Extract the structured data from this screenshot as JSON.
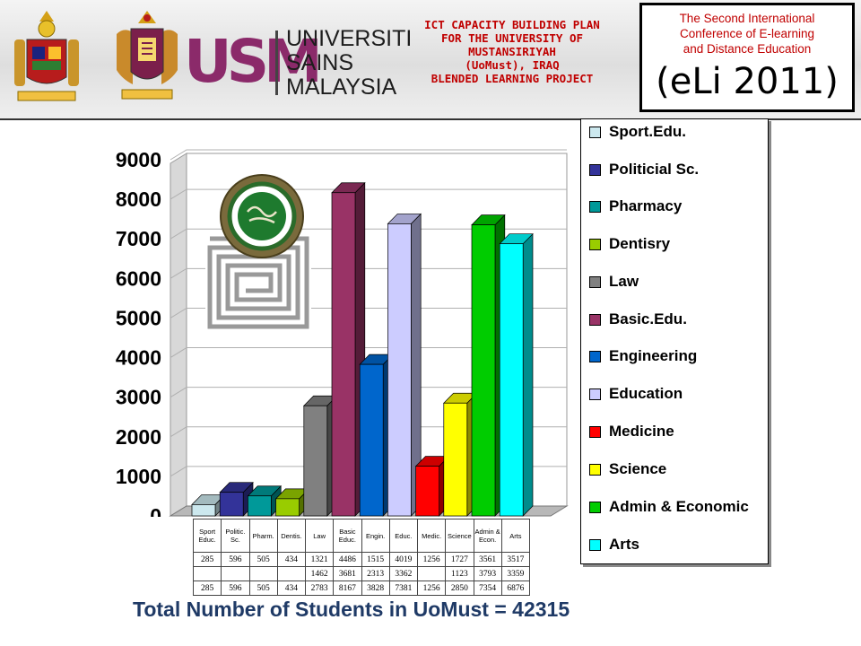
{
  "header": {
    "usm_mark": "USM",
    "usm_name_lines": [
      "UNIVERSITI",
      "SAINS",
      "MALAYSIA"
    ],
    "plan_title_lines": [
      "ICT CAPACITY BUILDING PLAN",
      "FOR THE UNIVERSITY OF",
      "MUSTANSIRIYAH",
      "(UoMust), IRAQ",
      "BLENDED LEARNING PROJECT"
    ],
    "conference_lines": [
      "The Second International",
      "Conference of E-learning",
      "and Distance Education"
    ],
    "conference_short": "(eLi 2011)"
  },
  "colors": {
    "title_red": "#c00000",
    "usm_purple": "#8b2a6a",
    "total_text": "#1f3a66"
  },
  "icons": [
    "malaysia-crest-icon",
    "university-crest-icon",
    "uomust-seal-icon",
    "kufic-pattern-icon"
  ],
  "chart_data": {
    "type": "bar",
    "categories": [
      "Sport.Edu.",
      "Politicial Sc.",
      "Pharmacy",
      "Dentisry",
      "Law",
      "Basic.Edu.",
      "Engineering",
      "Education",
      "Medicine",
      "Science",
      "Admin & Economic",
      "Arts"
    ],
    "short_labels": [
      "Sport Educ.",
      "Politic. Sc.",
      "Pharm.",
      "Dentis.",
      "Law",
      "Basic Educ.",
      "Engin.",
      "Educ.",
      "Medic.",
      "Science",
      "Admin & Econ.",
      "Arts"
    ],
    "values": [
      285,
      596,
      505,
      434,
      2783,
      8167,
      3828,
      7381,
      1256,
      2850,
      7354,
      6876
    ],
    "colors": [
      "#cce8ee",
      "#333399",
      "#009999",
      "#99cc00",
      "#808080",
      "#993366",
      "#0066cc",
      "#ccccff",
      "#ff0000",
      "#ffff00",
      "#00cc00",
      "#00ffff"
    ],
    "ylim": [
      0,
      9000
    ],
    "yticks": [
      0,
      1000,
      2000,
      3000,
      4000,
      5000,
      6000,
      7000,
      8000,
      9000
    ],
    "legend_position": "right",
    "grid": true,
    "table_rows": [
      [
        "285",
        "596",
        "505",
        "434",
        "1321",
        "4486",
        "1515",
        "4019",
        "1256",
        "1727",
        "3561",
        "3517"
      ],
      [
        "",
        "",
        "",
        "",
        "1462",
        "3681",
        "2313",
        "3362",
        "",
        "1123",
        "3793",
        "3359"
      ],
      [
        "285",
        "596",
        "505",
        "434",
        "2783",
        "8167",
        "3828",
        "7381",
        "1256",
        "2850",
        "7354",
        "6876"
      ]
    ],
    "total_label": "Total Number of Students in UoMust = 42315"
  }
}
